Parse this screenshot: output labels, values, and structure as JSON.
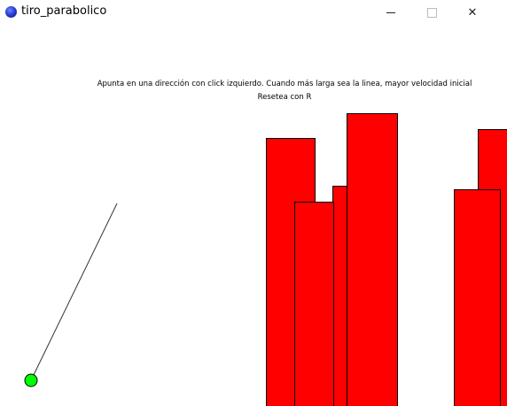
{
  "window": {
    "title": "tiro_parabolico",
    "app_icon": "processing-app-icon",
    "controls": {
      "minimize": "minimize-icon",
      "maximize": "maximize-icon",
      "close": "close-icon"
    }
  },
  "game": {
    "instructions_line1": "Apunta en una dirección con click izquierdo. Cuando más larga sea la linea, mayor velocidad inicial",
    "instructions_line2": "Resetea con R",
    "colors": {
      "background": "#ffffff",
      "obstacle": "#ff0000",
      "ball": "#00ff00",
      "aim_line": "#333333"
    }
  }
}
